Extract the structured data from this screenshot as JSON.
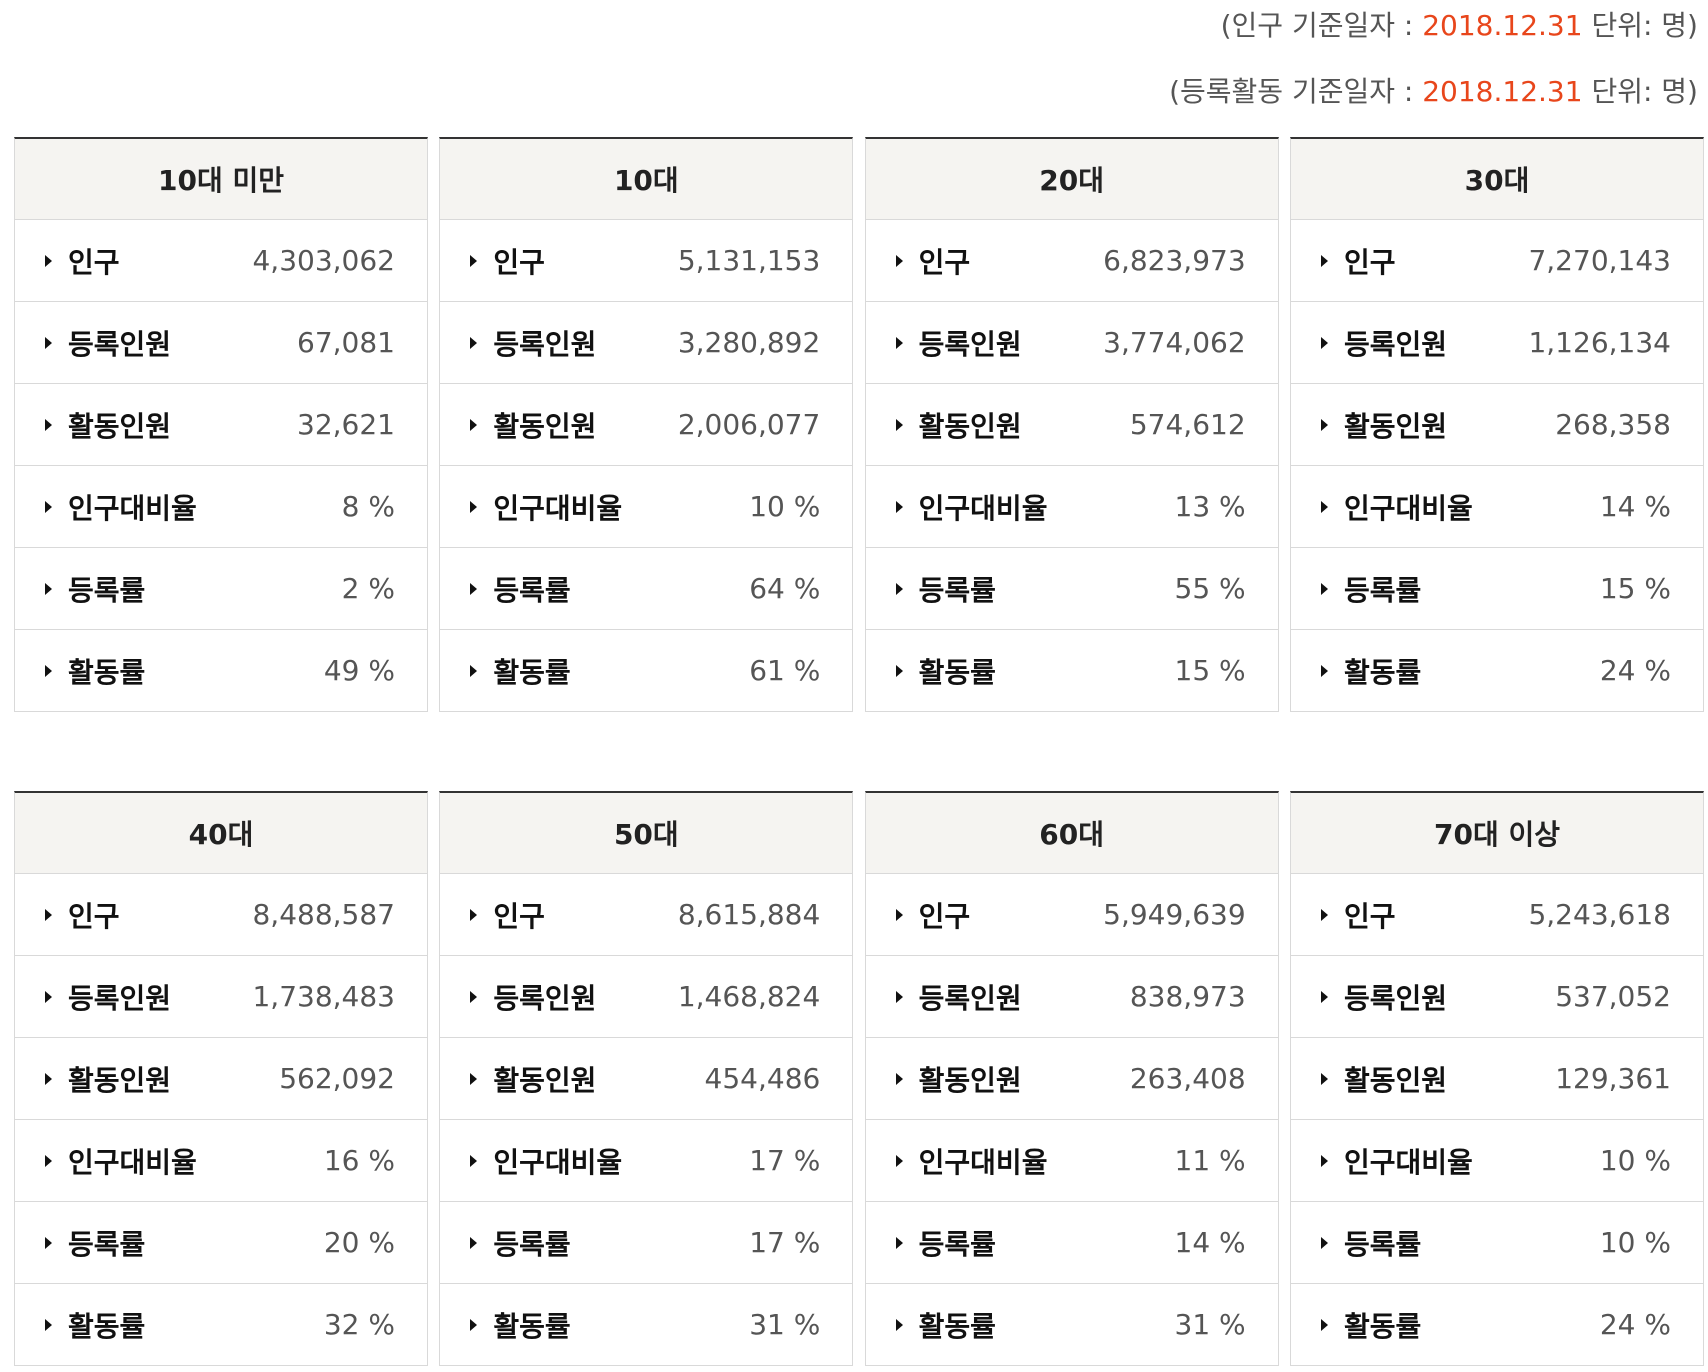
{
  "notes": [
    {
      "prefix": "(인구 기준일자 : ",
      "date": "2018.12.31",
      "suffix": " 단위: 명)"
    },
    {
      "prefix": "(등록활동 기준일자 : ",
      "date": "2018.12.31",
      "suffix": " 단위: 명)"
    }
  ],
  "accent_color": "#e8461b",
  "row_icon": "triangle-right-icon",
  "groups": [
    {
      "cards": [
        {
          "title": "10대 미만",
          "rows": [
            {
              "label": "인구",
              "value": "4,303,062"
            },
            {
              "label": "등록인원",
              "value": "67,081"
            },
            {
              "label": "활동인원",
              "value": "32,621"
            },
            {
              "label": "인구대비율",
              "value": "8 %"
            },
            {
              "label": "등록률",
              "value": "2 %"
            },
            {
              "label": "활동률",
              "value": "49 %"
            }
          ]
        },
        {
          "title": "10대",
          "rows": [
            {
              "label": "인구",
              "value": "5,131,153"
            },
            {
              "label": "등록인원",
              "value": "3,280,892"
            },
            {
              "label": "활동인원",
              "value": "2,006,077"
            },
            {
              "label": "인구대비율",
              "value": "10 %"
            },
            {
              "label": "등록률",
              "value": "64 %"
            },
            {
              "label": "활동률",
              "value": "61 %"
            }
          ]
        },
        {
          "title": "20대",
          "rows": [
            {
              "label": "인구",
              "value": "6,823,973"
            },
            {
              "label": "등록인원",
              "value": "3,774,062"
            },
            {
              "label": "활동인원",
              "value": "574,612"
            },
            {
              "label": "인구대비율",
              "value": "13 %"
            },
            {
              "label": "등록률",
              "value": "55 %"
            },
            {
              "label": "활동률",
              "value": "15 %"
            }
          ]
        },
        {
          "title": "30대",
          "rows": [
            {
              "label": "인구",
              "value": "7,270,143"
            },
            {
              "label": "등록인원",
              "value": "1,126,134"
            },
            {
              "label": "활동인원",
              "value": "268,358"
            },
            {
              "label": "인구대비율",
              "value": "14 %"
            },
            {
              "label": "등록률",
              "value": "15 %"
            },
            {
              "label": "활동률",
              "value": "24 %"
            }
          ]
        }
      ]
    },
    {
      "cards": [
        {
          "title": "40대",
          "rows": [
            {
              "label": "인구",
              "value": "8,488,587"
            },
            {
              "label": "등록인원",
              "value": "1,738,483"
            },
            {
              "label": "활동인원",
              "value": "562,092"
            },
            {
              "label": "인구대비율",
              "value": "16 %"
            },
            {
              "label": "등록률",
              "value": "20 %"
            },
            {
              "label": "활동률",
              "value": "32 %"
            }
          ]
        },
        {
          "title": "50대",
          "rows": [
            {
              "label": "인구",
              "value": "8,615,884"
            },
            {
              "label": "등록인원",
              "value": "1,468,824"
            },
            {
              "label": "활동인원",
              "value": "454,486"
            },
            {
              "label": "인구대비율",
              "value": "17 %"
            },
            {
              "label": "등록률",
              "value": "17 %"
            },
            {
              "label": "활동률",
              "value": "31 %"
            }
          ]
        },
        {
          "title": "60대",
          "rows": [
            {
              "label": "인구",
              "value": "5,949,639"
            },
            {
              "label": "등록인원",
              "value": "838,973"
            },
            {
              "label": "활동인원",
              "value": "263,408"
            },
            {
              "label": "인구대비율",
              "value": "11 %"
            },
            {
              "label": "등록률",
              "value": "14 %"
            },
            {
              "label": "활동률",
              "value": "31 %"
            }
          ]
        },
        {
          "title": "70대 이상",
          "rows": [
            {
              "label": "인구",
              "value": "5,243,618"
            },
            {
              "label": "등록인원",
              "value": "537,052"
            },
            {
              "label": "활동인원",
              "value": "129,361"
            },
            {
              "label": "인구대비율",
              "value": "10 %"
            },
            {
              "label": "등록률",
              "value": "10 %"
            },
            {
              "label": "활동률",
              "value": "24 %"
            }
          ]
        }
      ]
    }
  ]
}
